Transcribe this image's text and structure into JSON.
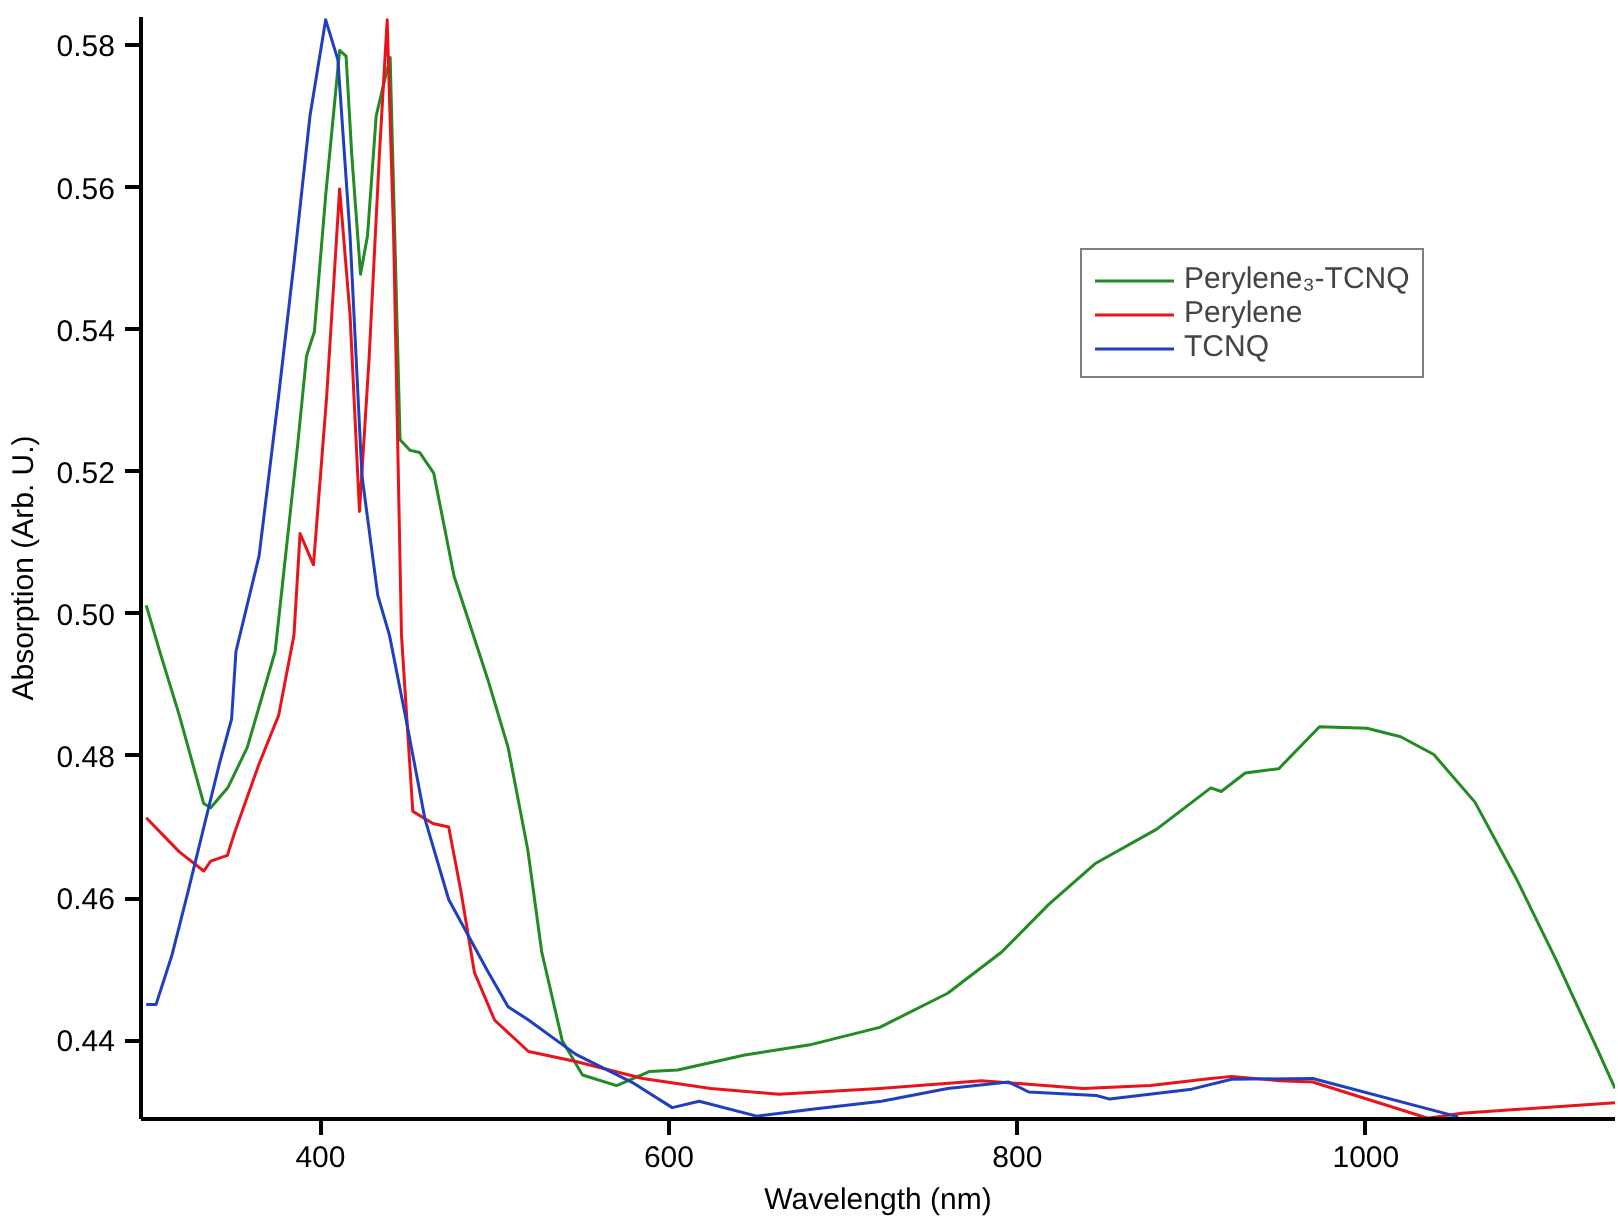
{
  "chart_data": {
    "type": "line",
    "xlabel": "Wavelength (nm)",
    "ylabel": "Absorption (Arb. U.)",
    "xlim": [
      297,
      1143
    ],
    "ylim": [
      0.4289,
      0.584
    ],
    "xticks": [
      400,
      600,
      800,
      1000
    ],
    "yticks": [
      0.44,
      0.46,
      0.48,
      {
        "value": 0.5,
        "label": "0.50"
      },
      0.52,
      0.54,
      0.56,
      0.58
    ],
    "grid": false,
    "legend": "top right",
    "line_style": "solid",
    "series": [
      {
        "name": "Perylene₃-TCNQ",
        "color": "#228b22",
        "x": [
          300,
          308,
          319,
          333,
          337,
          347,
          358,
          374,
          387,
          392,
          396.5,
          403,
          411,
          414.7,
          418,
          423,
          427,
          432,
          436.3,
          440,
          445.7,
          451.5,
          457,
          465,
          476.7,
          496,
          507.7,
          519,
          527,
          538.8,
          550.4,
          570,
          589,
          605,
          643.6,
          682,
          721,
          760,
          791,
          818,
          845,
          880,
          911,
          917,
          930.8,
          950,
          973.4,
          1000.6,
          1020,
          1039,
          1062.6,
          1086,
          1109,
          1132.5,
          1143
        ],
        "values": [
          0.5012,
          0.4945,
          0.4857,
          0.4733,
          0.4727,
          0.4756,
          0.4812,
          0.4947,
          0.524,
          0.5363,
          0.5397,
          0.5589,
          0.5793,
          0.5785,
          0.5645,
          0.5478,
          0.5532,
          0.5701,
          0.5746,
          0.5783,
          0.5245,
          0.523,
          0.5227,
          0.5198,
          0.5053,
          0.4908,
          0.4812,
          0.4668,
          0.4524,
          0.4399,
          0.4351,
          0.4336,
          0.4356,
          0.4358,
          0.4379,
          0.4394,
          0.4418,
          0.4466,
          0.4524,
          0.4591,
          0.4649,
          0.4697,
          0.4755,
          0.475,
          0.4776,
          0.4782,
          0.4841,
          0.4839,
          0.4827,
          0.4802,
          0.4735,
          0.4629,
          0.4514,
          0.4389,
          0.4332
        ]
      },
      {
        "name": "Perylene",
        "color": "#e8141c",
        "x": [
          300,
          319,
          333,
          337,
          346.6,
          351,
          364.8,
          376,
          384.8,
          388.3,
          396,
          403.6,
          411,
          417,
          422.4,
          428,
          433.8,
          438.3,
          442,
          446.5,
          453,
          464.6,
          473.6,
          480.6,
          488.4,
          500,
          519.4,
          546.6,
          585,
          624,
          663,
          721,
          779.4,
          837.6,
          876.4,
          911,
          923,
          950,
          969.5,
          1035.6,
          1055,
          1143
        ],
        "values": [
          0.4713,
          0.4665,
          0.4638,
          0.4652,
          0.466,
          0.4694,
          0.4789,
          0.4857,
          0.497,
          0.5113,
          0.5069,
          0.5307,
          0.5598,
          0.542,
          0.5144,
          0.5363,
          0.5645,
          0.5836,
          0.5532,
          0.497,
          0.4722,
          0.4705,
          0.47,
          0.461,
          0.4495,
          0.4428,
          0.4384,
          0.437,
          0.4346,
          0.4332,
          0.4324,
          0.4332,
          0.4343,
          0.4332,
          0.4336,
          0.4346,
          0.4349,
          0.4343,
          0.4341,
          0.429,
          0.4297,
          0.4312
        ]
      },
      {
        "name": "TCNQ",
        "color": "#1f3fbf",
        "x": [
          300,
          305.6,
          314.7,
          324,
          333,
          342,
          349,
          351.5,
          364.8,
          376,
          385,
          394,
          403,
          410,
          417,
          423.8,
          432.9,
          439.6,
          448.7,
          460,
          473.6,
          496,
          507.7,
          519,
          546.6,
          578.6,
          601.9,
          617.4,
          650.4,
          683.3,
          722,
          760,
          795,
          806.5,
          845.3,
          853,
          900,
          923,
          969.5,
          1053
        ],
        "values": [
          0.445,
          0.445,
          0.4519,
          0.4609,
          0.4699,
          0.4789,
          0.4852,
          0.4947,
          0.5082,
          0.5307,
          0.5498,
          0.5701,
          0.5836,
          0.578,
          0.5532,
          0.5195,
          0.5026,
          0.497,
          0.4857,
          0.4711,
          0.4598,
          0.4497,
          0.4447,
          0.4429,
          0.438,
          0.4341,
          0.4305,
          0.4314,
          0.4293,
          0.4303,
          0.4314,
          0.4332,
          0.4341,
          0.4327,
          0.4322,
          0.4317,
          0.4331,
          0.4345,
          0.4346,
          0.4292
        ]
      }
    ]
  }
}
